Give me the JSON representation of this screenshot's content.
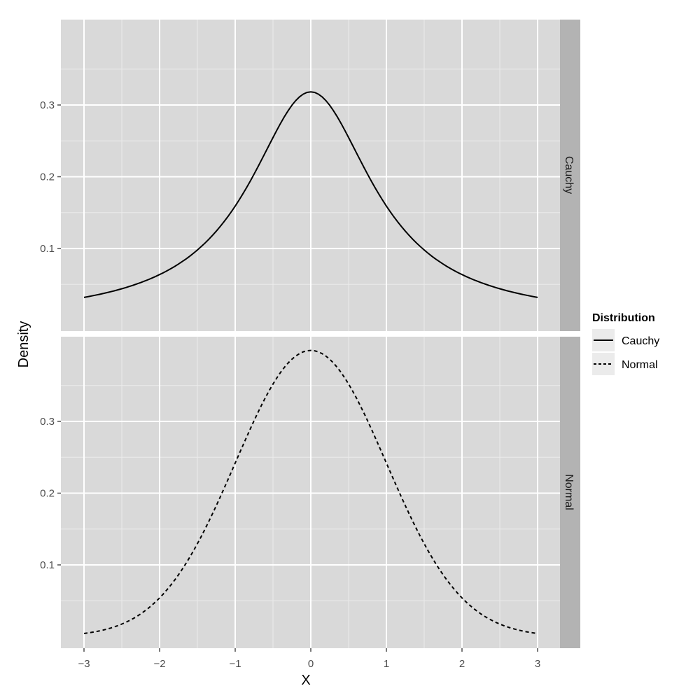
{
  "chart_data": {
    "type": "line",
    "title": "",
    "xlabel": "X",
    "ylabel": "Density",
    "xlim": [
      -3.3,
      3.3
    ],
    "x_ticks": [
      -3,
      -2,
      -1,
      0,
      1,
      2,
      3
    ],
    "x_tick_labels": [
      "−3",
      "−2",
      "−1",
      "0",
      "1",
      "2",
      "3"
    ],
    "grid": true,
    "facets": [
      {
        "strip_label": "Cauchy",
        "ylim": [
          0.0,
          0.42
        ],
        "y_ticks": [
          0.1,
          0.2,
          0.3
        ],
        "y_tick_labels": [
          "0.1",
          "0.2",
          "0.3"
        ],
        "series": {
          "name": "Cauchy",
          "linetype": "solid",
          "x": [
            -3,
            -2.5,
            -2,
            -1.5,
            -1,
            -0.5,
            0,
            0.5,
            1,
            1.5,
            2,
            2.5,
            3
          ],
          "y": [
            0.0318,
            0.0439,
            0.0637,
            0.0979,
            0.1592,
            0.2546,
            0.3183,
            0.2546,
            0.1592,
            0.0979,
            0.0637,
            0.0439,
            0.0318
          ]
        }
      },
      {
        "strip_label": "Normal",
        "ylim": [
          0.0,
          0.42
        ],
        "y_ticks": [
          0.1,
          0.2,
          0.3
        ],
        "y_tick_labels": [
          "0.1",
          "0.2",
          "0.3"
        ],
        "series": {
          "name": "Normal",
          "linetype": "dashed",
          "x": [
            -3,
            -2.5,
            -2,
            -1.5,
            -1,
            -0.5,
            0,
            0.5,
            1,
            1.5,
            2,
            2.5,
            3
          ],
          "y": [
            0.0044,
            0.0175,
            0.054,
            0.1295,
            0.242,
            0.3521,
            0.3989,
            0.3521,
            0.242,
            0.1295,
            0.054,
            0.0175,
            0.0044
          ]
        }
      }
    ],
    "legend": {
      "title": "Distribution",
      "position": "right",
      "entries": [
        {
          "label": "Cauchy",
          "linetype": "solid"
        },
        {
          "label": "Normal",
          "linetype": "dashed"
        }
      ]
    }
  },
  "colors": {
    "panel_bg": "#d9d9d9",
    "grid_major": "#ffffff",
    "grid_minor": "#ebebeb",
    "strip_bg": "#b3b3b3",
    "line": "#000000",
    "legend_key_bg": "#ebebeb"
  }
}
